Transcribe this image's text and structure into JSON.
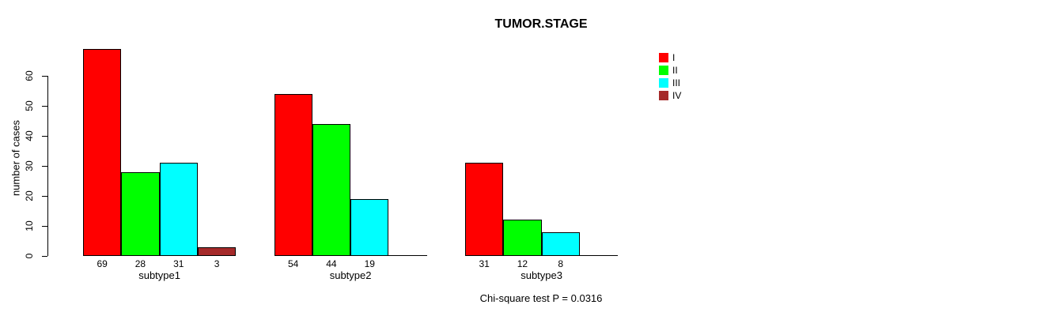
{
  "title": "TUMOR.STAGE",
  "ylabel": "number of cases",
  "footnote": "Chi-square test P = 0.0316",
  "legend": {
    "items": [
      {
        "label": "I",
        "color": "#FF0000"
      },
      {
        "label": "II",
        "color": "#00FF00"
      },
      {
        "label": "III",
        "color": "#00FFFF"
      },
      {
        "label": "IV",
        "color": "#A52A2A"
      }
    ]
  },
  "chart_data": {
    "type": "bar",
    "title": "TUMOR.STAGE",
    "xlabel": "",
    "ylabel": "number of cases",
    "categories": [
      "subtype1",
      "subtype2",
      "subtype3"
    ],
    "series": [
      {
        "name": "I",
        "color": "#FF0000",
        "values": [
          69,
          54,
          31
        ]
      },
      {
        "name": "II",
        "color": "#00FF00",
        "values": [
          28,
          44,
          12
        ]
      },
      {
        "name": "III",
        "color": "#00FFFF",
        "values": [
          31,
          19,
          8
        ]
      },
      {
        "name": "IV",
        "color": "#A52A2A",
        "values": [
          3,
          0,
          0
        ]
      }
    ],
    "bar_value_labels": [
      [
        "69",
        "28",
        "31",
        "3"
      ],
      [
        "54",
        "44",
        "19",
        ""
      ],
      [
        "31",
        "12",
        "8",
        ""
      ]
    ],
    "yticks": [
      0,
      10,
      20,
      30,
      40,
      50,
      60
    ],
    "ylim": [
      0,
      69
    ],
    "grid": false,
    "legend_position": "top-right",
    "annotation": "Chi-square test P = 0.0316"
  }
}
